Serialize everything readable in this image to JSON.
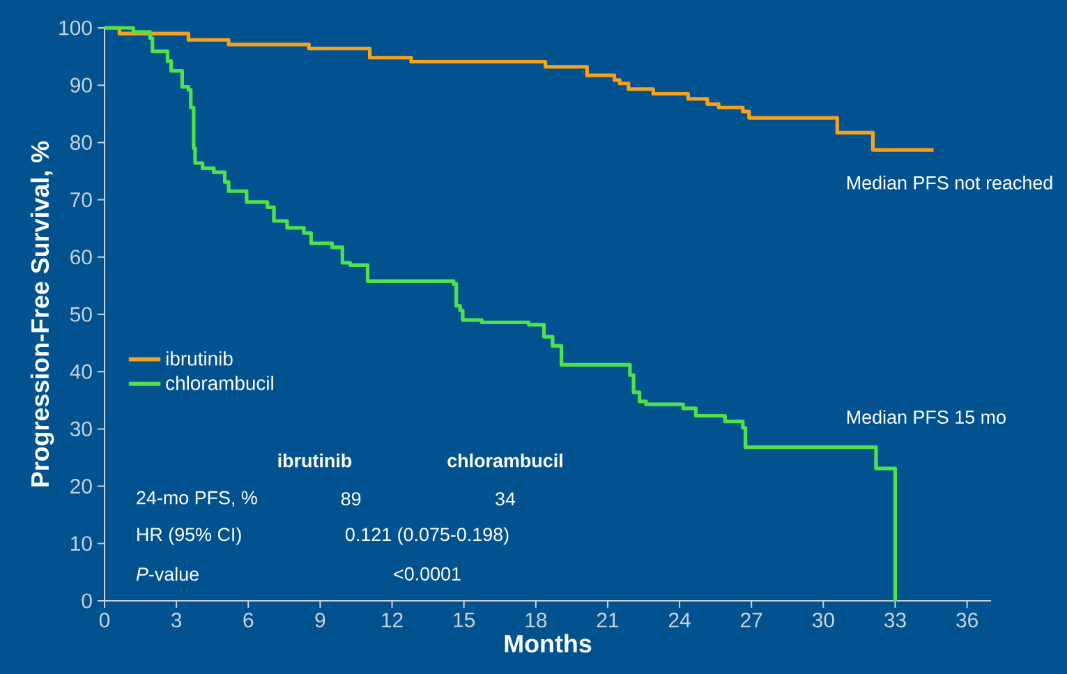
{
  "chart_data": {
    "type": "step",
    "xlabel": "Months",
    "ylabel": "Progression-Free Survival, %",
    "series": [
      {
        "name": "ibrutinib",
        "color": "#f7a21b",
        "x": [
          0,
          0.62,
          3.5,
          5.18,
          8.53,
          11.07,
          12.8,
          18.4,
          20.14,
          21.28,
          21.5,
          21.87,
          22.9,
          24.36,
          25.16,
          25.63,
          26.64,
          26.9,
          30.58,
          32.07,
          34.6
        ],
        "values": [
          100,
          99,
          97.9,
          97.1,
          96.4,
          94.8,
          94.1,
          93.2,
          91.7,
          90.9,
          90.3,
          89.3,
          88.5,
          87.6,
          86.7,
          86.1,
          85.4,
          84.3,
          81.7,
          78.7,
          78.7
        ]
      },
      {
        "name": "chlorambucil",
        "color": "#4fe34a",
        "x": [
          0,
          1.2,
          1.9,
          2.0,
          2.63,
          2.78,
          3.24,
          3.5,
          3.6,
          3.72,
          3.78,
          4.09,
          4.56,
          5.02,
          5.18,
          5.93,
          6.8,
          7.07,
          7.62,
          8.32,
          8.62,
          9.5,
          9.93,
          10.25,
          10.98,
          14.57,
          14.68,
          14.84,
          14.95,
          15.74,
          17.7,
          18.34,
          18.7,
          19.07,
          21.93,
          22.08,
          22.33,
          22.6,
          24.15,
          24.68,
          25.9,
          26.64,
          26.75,
          32.2,
          33.0
        ],
        "values": [
          100,
          99.3,
          98.2,
          95.9,
          94.2,
          92.5,
          89.7,
          89.2,
          86.1,
          79,
          76.4,
          75.5,
          74.8,
          73.1,
          71.5,
          69.6,
          68.7,
          66.3,
          65.1,
          64.2,
          62.4,
          61.7,
          59.0,
          58.6,
          55.8,
          55.3,
          51.5,
          50.7,
          49.0,
          48.6,
          48.2,
          46.1,
          44.5,
          41.2,
          39.4,
          36.4,
          34.8,
          34.3,
          33.6,
          32.3,
          31.3,
          30.2,
          26.8,
          23.1,
          0
        ]
      }
    ],
    "xlim": [
      0,
      37
    ],
    "ylim": [
      0,
      100
    ],
    "xticks": [
      0,
      3,
      6,
      9,
      12,
      15,
      18,
      21,
      24,
      27,
      30,
      33,
      36
    ],
    "yticks": [
      0,
      10,
      20,
      30,
      40,
      50,
      60,
      70,
      80,
      90,
      100
    ],
    "legend": "left",
    "grid": false,
    "annotations": [
      "Median PFS not reached",
      "Median PFS 15 mo",
      "ibrutinib",
      "chlorambucil",
      "24-mo PFS, %",
      "89",
      "34",
      "HR (95% CI)",
      "0.121 (0.075-0.198)",
      "*P*-value",
      "<0.0001"
    ]
  }
}
